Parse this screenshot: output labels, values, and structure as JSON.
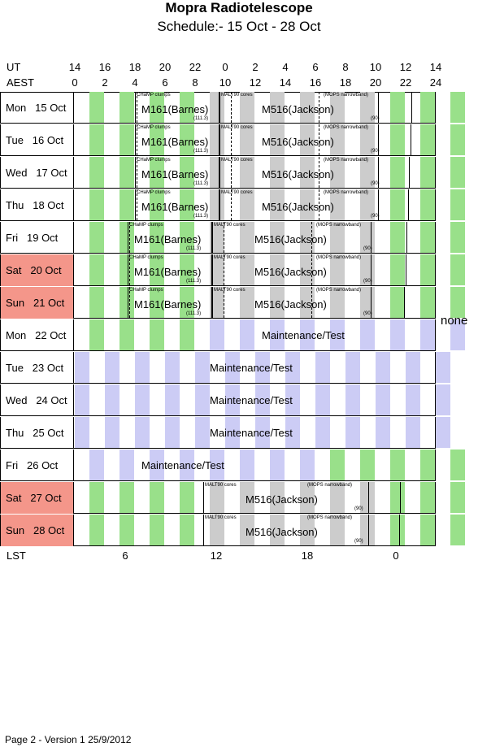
{
  "title": "Mopra Radiotelescope",
  "subtitle": "Schedule:- 15 Oct - 28 Oct",
  "ut_label": "UT",
  "aest_label": "AEST",
  "lst_label": "LST",
  "ut_ticks": [
    "14",
    "16",
    "18",
    "20",
    "22",
    "0",
    "2",
    "4",
    "6",
    "8",
    "10",
    "12",
    "14"
  ],
  "aest_ticks": [
    "0",
    "2",
    "4",
    "6",
    "8",
    "10",
    "12",
    "14",
    "16",
    "18",
    "20",
    "22",
    "24"
  ],
  "lst_ticks": [
    "6",
    "12",
    "18",
    "0"
  ],
  "none_label": "none",
  "footer": "Page 2 - Version 1  25/9/2012",
  "rows": [
    {
      "day": "Mon",
      "date": "15 Oct",
      "weekend": false
    },
    {
      "day": "Tue",
      "date": "16 Oct",
      "weekend": false
    },
    {
      "day": "Wed",
      "date": "17 Oct",
      "weekend": false
    },
    {
      "day": "Thu",
      "date": "18 Oct",
      "weekend": false
    },
    {
      "day": "Fri",
      "date": "19 Oct",
      "weekend": false
    },
    {
      "day": "Sat",
      "date": "20 Oct",
      "weekend": true
    },
    {
      "day": "Sun",
      "date": "21 Oct",
      "weekend": true
    },
    {
      "day": "Mon",
      "date": "22 Oct",
      "weekend": false
    },
    {
      "day": "Tue",
      "date": "23 Oct",
      "weekend": false
    },
    {
      "day": "Wed",
      "date": "24 Oct",
      "weekend": false
    },
    {
      "day": "Thu",
      "date": "25 Oct",
      "weekend": false
    },
    {
      "day": "Fri",
      "date": "26 Oct",
      "weekend": false
    },
    {
      "day": "Sat",
      "date": "27 Oct",
      "weekend": true
    },
    {
      "day": "Sun",
      "date": "28 Oct",
      "weekend": true
    }
  ],
  "labels": {
    "champ": "CHaMP clumps",
    "m161": "M161(Barnes)",
    "m161_note": "(111.3)",
    "malt": "MALT90 cores",
    "m516": "M516(Jackson)",
    "mops": "(MOPS narrowband)",
    "m516_note": "(90)",
    "maintenance": "Maintenance/Test"
  },
  "colors": {
    "green": "#99e08a",
    "grey": "#cccccc",
    "lavender": "#ccccf5",
    "weekend": "#f4968a"
  }
}
